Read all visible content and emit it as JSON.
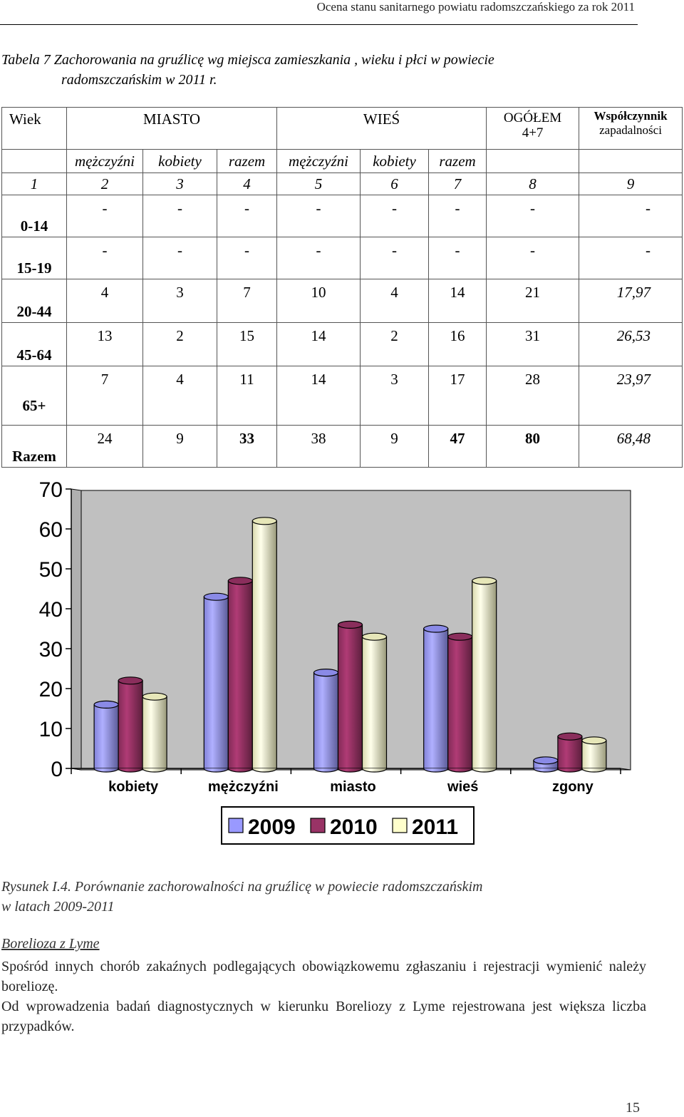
{
  "header": {
    "title": "Ocena stanu sanitarnego powiatu radomszczańskiego za rok 2011"
  },
  "caption": {
    "line1": "Tabela 7  Zachorowania na gruźlicę wg miejsca zamieszkania , wieku i płci w powiecie",
    "line2": "radomszczańskim w 2011 r."
  },
  "table": {
    "head": {
      "wiek": "Wiek",
      "miasto": "MIASTO",
      "wies": "WIEŚ",
      "ogolem": "OGÓŁEM",
      "ogolem_sub": "4+7",
      "coef1": "Współczynnik",
      "coef2": "zapadalności"
    },
    "sub": [
      "mężczyźni",
      "kobiety",
      "razem",
      "mężczyźni",
      "kobiety",
      "razem"
    ],
    "nums": [
      "1",
      "2",
      "3",
      "4",
      "5",
      "6",
      "7",
      "8",
      "9"
    ],
    "rows": [
      {
        "age": "0-14",
        "v": [
          "-",
          "-",
          "-",
          "-",
          "-",
          "-",
          "-",
          "-"
        ]
      },
      {
        "age": "15-19",
        "v": [
          "-",
          "-",
          "-",
          "-",
          "-",
          "-",
          "-",
          "-"
        ]
      },
      {
        "age": "20-44",
        "v": [
          "4",
          "3",
          "7",
          "10",
          "4",
          "14",
          "21",
          "17,97"
        ]
      },
      {
        "age": "45-64",
        "v": [
          "13",
          "2",
          "15",
          "14",
          "2",
          "16",
          "31",
          "26,53"
        ]
      },
      {
        "age": "65+",
        "v": [
          "7",
          "4",
          "11",
          "14",
          "3",
          "17",
          "28",
          "23,97"
        ]
      },
      {
        "age": "Razem",
        "v": [
          "24",
          "9",
          "33",
          "38",
          "9",
          "47",
          "80",
          "68,48"
        ]
      }
    ]
  },
  "chart_data": {
    "type": "bar",
    "categories": [
      "kobiety",
      "mężczyźni",
      "miasto",
      "wieś",
      "zgony"
    ],
    "series": [
      {
        "name": "2009",
        "values": [
          16,
          43,
          24,
          35,
          2
        ],
        "color": "#9999ff"
      },
      {
        "name": "2010",
        "values": [
          22,
          47,
          36,
          33,
          8
        ],
        "color": "#993366"
      },
      {
        "name": "2011",
        "values": [
          18,
          62,
          33,
          47,
          7
        ],
        "color": "#ffffcc"
      }
    ],
    "ylim": [
      0,
      70
    ],
    "yticks": [
      "0",
      "10",
      "20",
      "30",
      "40",
      "50",
      "60",
      "70"
    ],
    "legend": "bottom"
  },
  "figure": {
    "caption1": "Rysunek I.4. Porównanie zachorowalności na gruźlicę w powiecie radomszczańskim",
    "caption2": "w latach 2009-2011"
  },
  "section": {
    "title": "Borelioza z Lyme",
    "p1": "Spośród innych chorób zakaźnych podlegających obowiązkowemu zgłaszaniu i rejestracji wymienić należy boreliozę.",
    "p2": "Od wprowadzenia badań diagnostycznych w kierunku Boreliozy z Lyme rejestrowana jest większa liczba przypadków."
  },
  "page_number": "15"
}
